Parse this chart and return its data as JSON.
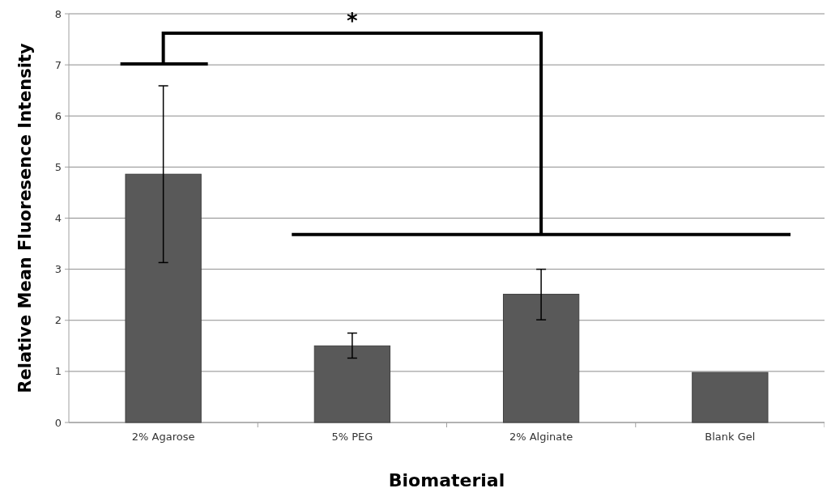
{
  "chart_data": {
    "type": "bar",
    "xlabel": "Biomaterial",
    "ylabel": "Relative Mean Fluoresence Intensity",
    "categories": [
      "2% Agarose",
      "5% PEG",
      "2% Alginate",
      "Blank Gel"
    ],
    "values": [
      4.86,
      1.5,
      2.51,
      0.98
    ],
    "color": "#595959",
    "errors": [
      [
        3.13,
        6.59
      ],
      [
        1.26,
        1.75
      ],
      [
        2.01,
        3.0
      ],
      null
    ],
    "ylim": [
      0,
      8
    ],
    "yticks": [
      0,
      1,
      2,
      3,
      4,
      5,
      6,
      7,
      8
    ],
    "grid": "y",
    "annotations": [
      "*"
    ]
  }
}
